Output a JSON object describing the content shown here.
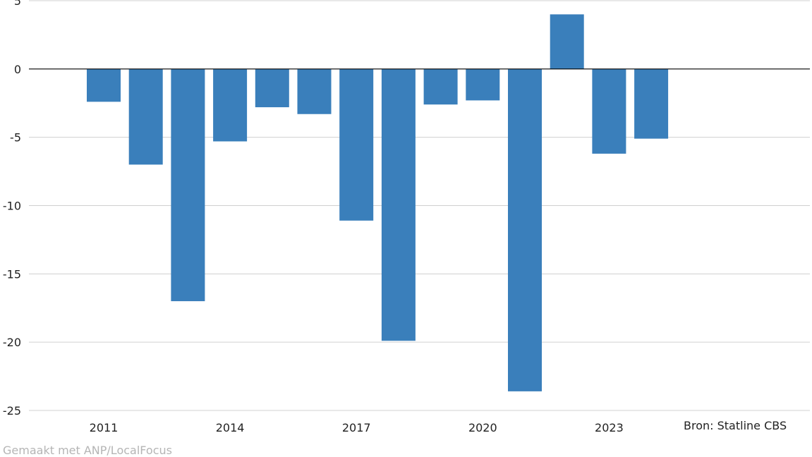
{
  "source": "Bron: Statline CBS",
  "credit": "Gemaakt met ANP/LocalFocus",
  "colors": {
    "bar": "#3a7fbb",
    "grid": "#d0d0d0",
    "zero": "#000000",
    "text": "#222222"
  },
  "chart_data": {
    "type": "bar",
    "categories": [
      "2011",
      "2012",
      "2013",
      "2014",
      "2015",
      "2016",
      "2017",
      "2018",
      "2019",
      "2020",
      "2021",
      "2022",
      "2023",
      "2024"
    ],
    "x_tick_labels": [
      "2011",
      "2014",
      "2017",
      "2020",
      "2023"
    ],
    "values": [
      -2.4,
      -7.0,
      -17.0,
      -5.3,
      -2.8,
      -3.3,
      -11.1,
      -19.9,
      -2.6,
      -2.3,
      -23.6,
      4.0,
      -6.2,
      -5.1
    ],
    "y_ticks": [
      5,
      0,
      -5,
      -10,
      -15,
      -20,
      -25
    ],
    "ylim": [
      -25,
      5
    ],
    "grid": true,
    "title": "",
    "xlabel": "",
    "ylabel": ""
  }
}
